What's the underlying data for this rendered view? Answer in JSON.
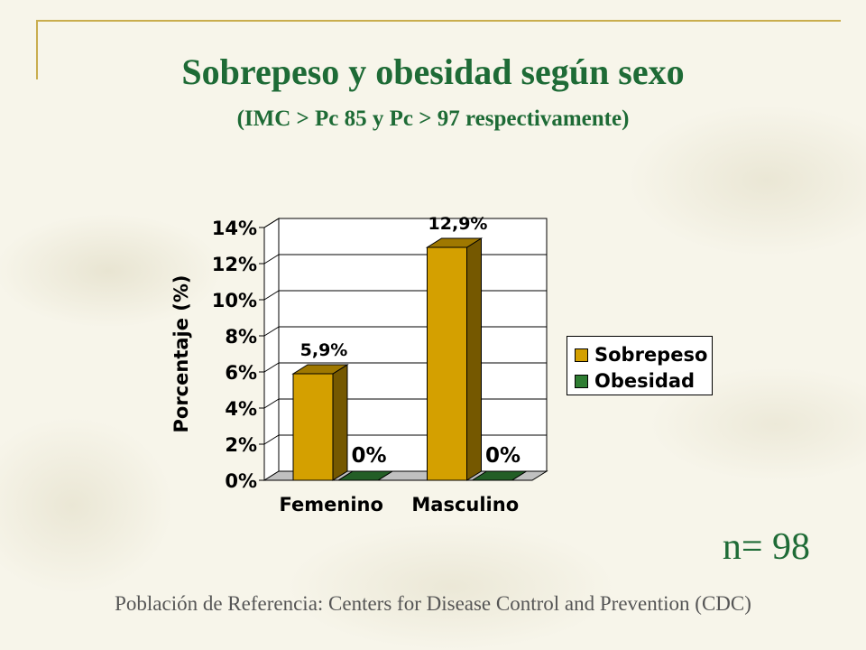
{
  "slide": {
    "title": "Sobrepeso y obesidad según sexo",
    "subtitle": "(IMC > Pc 85 y Pc > 97 respectivamente)",
    "sample_size": "n= 98",
    "footer": "Población de Referencia:  Centers for Disease Control and Prevention (CDC)"
  },
  "chart_data": {
    "type": "bar",
    "title": "",
    "xlabel": "",
    "ylabel": "Porcentaje (%)",
    "categories": [
      "Femenino",
      "Masculino"
    ],
    "series": [
      {
        "name": "Sobrepeso",
        "values": [
          5.9,
          12.9
        ],
        "labels": [
          "5,9%",
          "12,9%"
        ],
        "color": "#d4a000"
      },
      {
        "name": "Obesidad",
        "values": [
          0,
          0
        ],
        "labels": [
          "0%",
          "0%"
        ],
        "color": "#2e7d32"
      }
    ],
    "ylim": [
      0,
      14
    ],
    "yticks": [
      "0%",
      "2%",
      "4%",
      "6%",
      "8%",
      "10%",
      "12%",
      "14%"
    ],
    "grid": true,
    "legend_position": "right"
  }
}
